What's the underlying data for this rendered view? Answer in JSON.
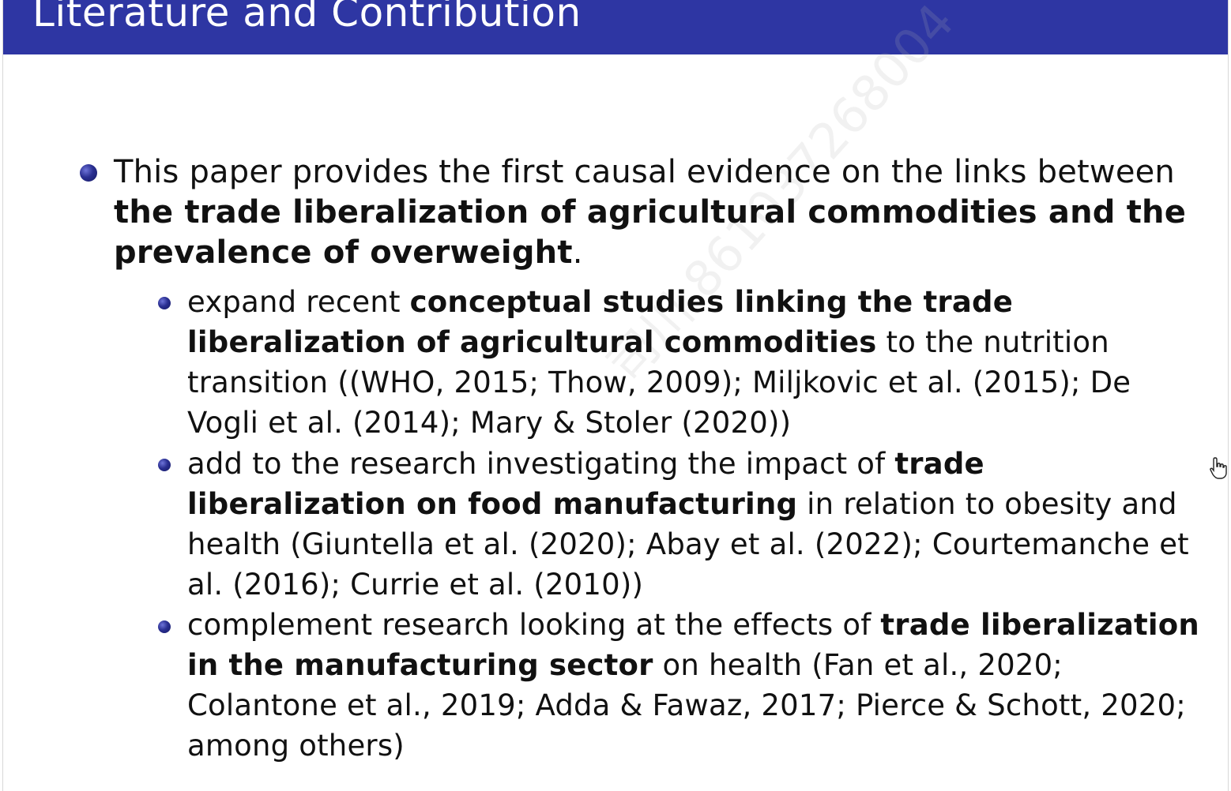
{
  "slide": {
    "title": "Literature and Contribution",
    "main_bullet": {
      "text_1": "This paper provides the first causal evidence on the links between ",
      "bold_1": "the trade liberalization of agricultural commodities and the prevalence of overweight",
      "text_2": "."
    },
    "sub_bullets": [
      {
        "text_1": "expand recent ",
        "bold_1": "conceptual studies linking the trade liberalization of agricultural commodities",
        "text_2": " to the nutrition transition ((WHO, 2015; Thow, 2009); Miljkovic et al. (2015); De Vogli et al. (2014); Mary & Stoler (2020))"
      },
      {
        "text_1": "add to the research investigating the impact of ",
        "bold_1": "trade liberalization on food manufacturing",
        "text_2": " in relation to obesity and health (Giuntella et al. (2020); Abay et al. (2022); Courtemanche et al. (2016); Currie et al. (2010))"
      },
      {
        "text_1": "complement research looking at the effects of ",
        "bold_1": "trade liberalization in the manufacturing sector",
        "text_2": " on health (Fan et al., 2020; Colantone et al., 2019; Adda & Fawaz, 2017; Pierce & Schott, 2020; among others)"
      }
    ]
  },
  "watermark": "司川 861037268004",
  "icons": {
    "bullet": "bullet-ball-icon",
    "cursor": "hand-pointer-cursor-icon"
  },
  "colors": {
    "title_bar": "#2e36a3",
    "bullet": "#2a2f91"
  }
}
